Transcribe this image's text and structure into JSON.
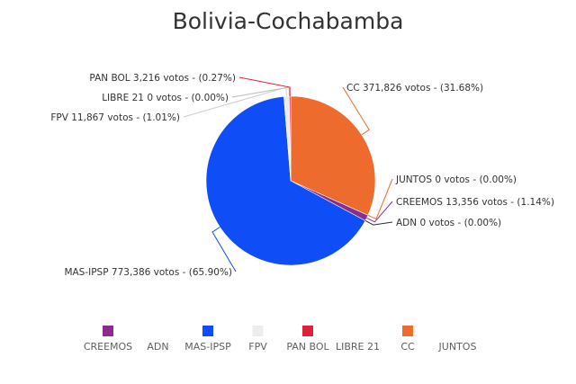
{
  "chart_data": {
    "type": "pie",
    "title": "Bolivia-Cochabamba",
    "slices": [
      {
        "name": "CC",
        "votes": 371826,
        "percent": 31.68,
        "label": "CC 371,826 votos - (31.68%)",
        "color": "#ec6b2d"
      },
      {
        "name": "JUNTOS",
        "votes": 0,
        "percent": 0.0,
        "label": "JUNTOS 0 votos - (0.00%)",
        "color": "#ec6b2d"
      },
      {
        "name": "CREEMOS",
        "votes": 13356,
        "percent": 1.14,
        "label": "CREEMOS 13,356 votos - (1.14%)",
        "color": "#8e2c8c"
      },
      {
        "name": "ADN",
        "votes": 0,
        "percent": 0.0,
        "label": "ADN 0 votos - (0.00%)",
        "color": "#2b2b2b"
      },
      {
        "name": "MAS-IPSP",
        "votes": 773386,
        "percent": 65.9,
        "label": "MAS-IPSP 773,386 votos - (65.90%)",
        "color": "#0f4ef7"
      },
      {
        "name": "FPV",
        "votes": 11867,
        "percent": 1.01,
        "label": "FPV 11,867 votos - (1.01%)",
        "color": "#ececec"
      },
      {
        "name": "LIBRE 21",
        "votes": 0,
        "percent": 0.0,
        "label": "LIBRE 21 0 votos - (0.00%)",
        "color": "#bbbbbb"
      },
      {
        "name": "PAN BOL",
        "votes": 3216,
        "percent": 0.27,
        "label": "PAN BOL 3,216 votos - (0.27%)",
        "color": "#e0213a"
      }
    ],
    "legend": {
      "placement": "bottom",
      "items": [
        {
          "name": "CREEMOS",
          "color": "#8e2c8c",
          "swatch": true
        },
        {
          "name": "ADN",
          "color": "#ffffff",
          "swatch": false
        },
        {
          "name": "MAS-IPSP",
          "color": "#0f4ef7",
          "swatch": true
        },
        {
          "name": "FPV",
          "color": "#ececec",
          "swatch": true
        },
        {
          "name": "PAN BOL",
          "color": "#e0213a",
          "swatch": true
        },
        {
          "name": "LIBRE 21",
          "color": "#ffffff",
          "swatch": false
        },
        {
          "name": "CC",
          "color": "#ec6b2d",
          "swatch": true
        },
        {
          "name": "JUNTOS",
          "color": "#ffffff",
          "swatch": false
        }
      ]
    }
  }
}
